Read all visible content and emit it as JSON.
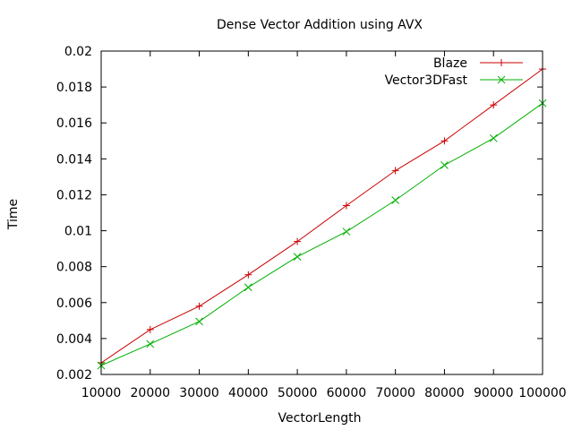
{
  "chart_data": {
    "type": "line",
    "title": "Dense Vector Addition using AVX",
    "xlabel": "VectorLength",
    "ylabel": "Time",
    "xlim": [
      10000,
      100000
    ],
    "ylim": [
      0.002,
      0.02
    ],
    "xticks": [
      10000,
      20000,
      30000,
      40000,
      50000,
      60000,
      70000,
      80000,
      90000,
      100000
    ],
    "xtick_labels": [
      "10000",
      "20000",
      "30000",
      "40000",
      "50000",
      "60000",
      "70000",
      "80000",
      "90000",
      "100000"
    ],
    "yticks": [
      0.002,
      0.004,
      0.006,
      0.008,
      0.01,
      0.012,
      0.014,
      0.016,
      0.018,
      0.02
    ],
    "ytick_labels": [
      "0.002",
      "0.004",
      "0.006",
      "0.008",
      "0.01",
      "0.012",
      "0.014",
      "0.016",
      "0.018",
      "0.02"
    ],
    "grid": false,
    "legend_position": "top-right",
    "x": [
      10000,
      20000,
      30000,
      40000,
      50000,
      60000,
      70000,
      80000,
      90000,
      100000
    ],
    "series": [
      {
        "name": "Blaze",
        "marker": "plus",
        "color": "#cc0000",
        "values": [
          0.00265,
          0.0045,
          0.0058,
          0.00755,
          0.0094,
          0.0114,
          0.01335,
          0.015,
          0.017,
          0.019
        ]
      },
      {
        "name": "Vector3DFast",
        "marker": "cross",
        "color": "#00b000",
        "values": [
          0.0025,
          0.0037,
          0.00495,
          0.00685,
          0.00855,
          0.00995,
          0.0117,
          0.01365,
          0.01515,
          0.0171
        ]
      }
    ]
  }
}
